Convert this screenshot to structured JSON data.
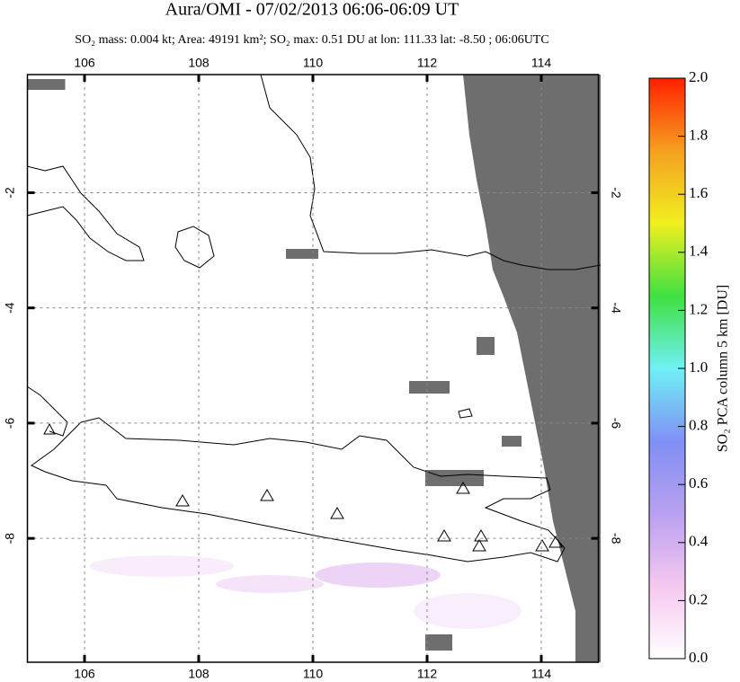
{
  "chart_data": {
    "type": "map",
    "title": "Aura/OMI - 07/02/2013 06:06-06:09 UT",
    "subtitle": "SO₂ mass: 0.004 kt; Area: 49191 km²; SO₂ max: 0.51 DU at lon: 111.33 lat: -8.50 ; 06:06UTC",
    "xlim": [
      105,
      115
    ],
    "xticks": [
      106,
      108,
      110,
      112,
      114
    ],
    "ylim": [
      -10.15,
      0.05
    ],
    "yticks": [
      -2,
      -4,
      -6,
      -8
    ],
    "grid": true,
    "colorbar": {
      "label": "SO₂ PCA column 5 km [DU]",
      "lim": [
        0,
        2
      ],
      "ticks": [
        {
          "value": 0,
          "label": "0.0"
        },
        {
          "value": 0.2,
          "label": "0.2"
        },
        {
          "value": 0.4,
          "label": "0.4"
        },
        {
          "value": 0.6,
          "label": "0.6"
        },
        {
          "value": 0.8,
          "label": "0.8"
        },
        {
          "value": 1,
          "label": "1.0"
        },
        {
          "value": 1.2,
          "label": "1.2"
        },
        {
          "value": 1.4,
          "label": "1.4"
        },
        {
          "value": 1.6,
          "label": "1.6"
        },
        {
          "value": 1.8,
          "label": "1.8"
        },
        {
          "value": 2,
          "label": "2.0"
        }
      ],
      "colors": [
        "#ffffff",
        "#f5c8f0",
        "#b9a0f0",
        "#8090f5",
        "#70f0f5",
        "#40e040",
        "#f0f020",
        "#f5a020",
        "#ff2000"
      ]
    }
  }
}
